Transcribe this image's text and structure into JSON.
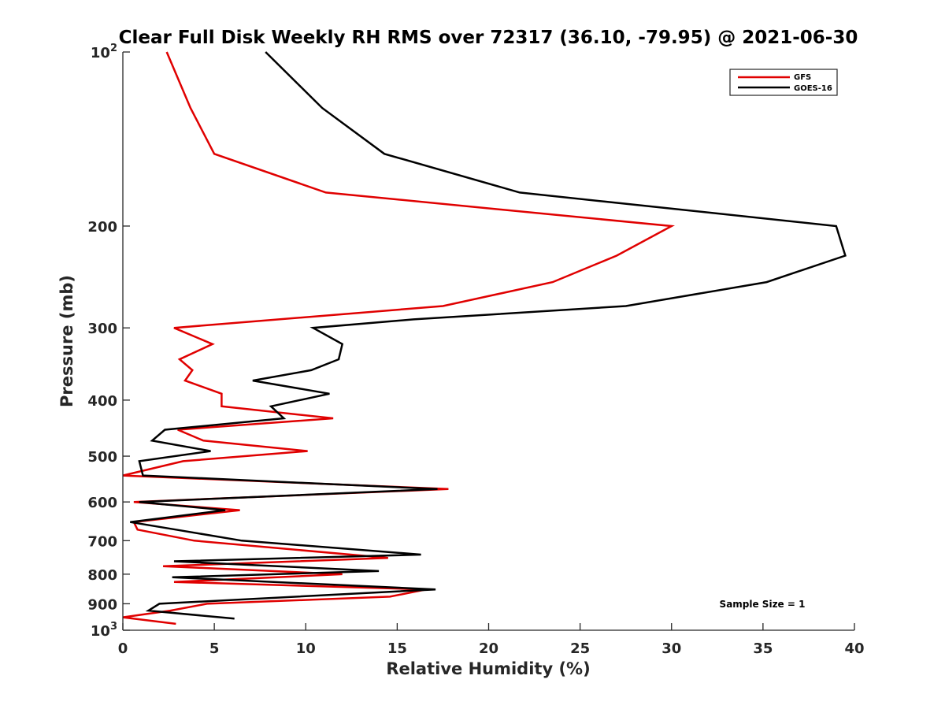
{
  "chart_data": {
    "type": "line",
    "title": "Clear Full Disk Weekly RH RMS over 72317 (36.10, -79.95) @ 2021-06-30",
    "xlabel": "Relative Humidity (%)",
    "ylabel": "Pressure (mb)",
    "xlim": [
      0,
      40
    ],
    "ylim": [
      100,
      1000
    ],
    "y_scale": "log",
    "y_reversed": true,
    "grid": false,
    "legend_position": "top-right",
    "x_ticks": [
      "0",
      "5",
      "10",
      "15",
      "20",
      "25",
      "30",
      "35",
      "40"
    ],
    "y_ticks": [
      {
        "value": 100,
        "label": "10",
        "sup": "2"
      },
      {
        "value": 200,
        "label": "200",
        "sup": ""
      },
      {
        "value": 300,
        "label": "300",
        "sup": ""
      },
      {
        "value": 400,
        "label": "400",
        "sup": ""
      },
      {
        "value": 500,
        "label": "500",
        "sup": ""
      },
      {
        "value": 600,
        "label": "600",
        "sup": ""
      },
      {
        "value": 700,
        "label": "700",
        "sup": ""
      },
      {
        "value": 800,
        "label": "800",
        "sup": ""
      },
      {
        "value": 900,
        "label": "900",
        "sup": ""
      },
      {
        "value": 1000,
        "label": "10",
        "sup": "3"
      }
    ],
    "annotation": "Sample Size = 1",
    "series": [
      {
        "name": "GFS",
        "color": "#e00000",
        "points": [
          [
            2.4,
            100
          ],
          [
            3.7,
            125
          ],
          [
            5.0,
            150
          ],
          [
            11.1,
            175
          ],
          [
            30.0,
            200
          ],
          [
            27.0,
            225
          ],
          [
            23.5,
            250
          ],
          [
            17.5,
            275
          ],
          [
            2.8,
            300
          ],
          [
            4.9,
            320
          ],
          [
            3.1,
            340
          ],
          [
            3.8,
            355
          ],
          [
            3.4,
            370
          ],
          [
            5.4,
            390
          ],
          [
            5.4,
            410
          ],
          [
            11.5,
            430
          ],
          [
            3.0,
            450
          ],
          [
            4.4,
            470
          ],
          [
            10.1,
            490
          ],
          [
            3.3,
            510
          ],
          [
            0.0,
            540
          ],
          [
            17.8,
            570
          ],
          [
            0.6,
            600
          ],
          [
            6.4,
            620
          ],
          [
            0.6,
            650
          ],
          [
            0.8,
            670
          ],
          [
            3.9,
            700
          ],
          [
            14.5,
            750
          ],
          [
            2.2,
            775
          ],
          [
            12.0,
            800
          ],
          [
            2.8,
            825
          ],
          [
            16.6,
            850
          ],
          [
            14.6,
            875
          ],
          [
            4.6,
            900
          ],
          [
            2.6,
            925
          ],
          [
            0.0,
            950
          ],
          [
            2.9,
            975
          ]
        ]
      },
      {
        "name": "GOES-16",
        "color": "#000000",
        "points": [
          [
            7.8,
            100
          ],
          [
            10.9,
            125
          ],
          [
            14.3,
            150
          ],
          [
            21.7,
            175
          ],
          [
            39.0,
            200
          ],
          [
            39.5,
            225
          ],
          [
            35.2,
            250
          ],
          [
            27.5,
            275
          ],
          [
            15.9,
            290
          ],
          [
            10.4,
            300
          ],
          [
            12.0,
            320
          ],
          [
            11.8,
            340
          ],
          [
            10.3,
            355
          ],
          [
            7.1,
            370
          ],
          [
            11.3,
            390
          ],
          [
            8.1,
            410
          ],
          [
            8.8,
            430
          ],
          [
            2.3,
            450
          ],
          [
            1.6,
            470
          ],
          [
            4.8,
            490
          ],
          [
            0.9,
            510
          ],
          [
            1.1,
            540
          ],
          [
            17.2,
            570
          ],
          [
            0.9,
            600
          ],
          [
            5.6,
            620
          ],
          [
            0.4,
            650
          ],
          [
            2.9,
            670
          ],
          [
            6.5,
            700
          ],
          [
            16.3,
            740
          ],
          [
            2.8,
            760
          ],
          [
            14.0,
            790
          ],
          [
            2.7,
            810
          ],
          [
            17.1,
            850
          ],
          [
            2.0,
            900
          ],
          [
            1.4,
            925
          ],
          [
            6.1,
            955
          ]
        ]
      }
    ]
  }
}
